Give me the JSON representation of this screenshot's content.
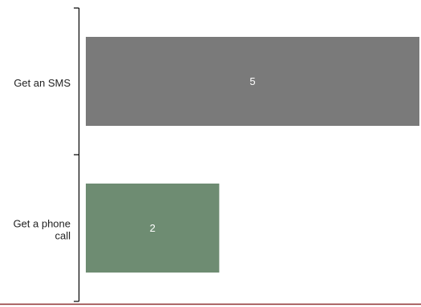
{
  "chart_data": {
    "type": "bar",
    "orientation": "horizontal",
    "categories": [
      [
        "Get an SMS"
      ],
      [
        "Get a phone",
        "call"
      ]
    ],
    "category_text": [
      "Get an SMS",
      "Get a phone call"
    ],
    "values": [
      5,
      2
    ],
    "value_labels": [
      "5",
      "2"
    ],
    "xlim": [
      0,
      5
    ],
    "colors": [
      "#7a7a7a",
      "#6e8c72"
    ],
    "grid": false,
    "title": "",
    "xlabel": "",
    "ylabel": ""
  }
}
